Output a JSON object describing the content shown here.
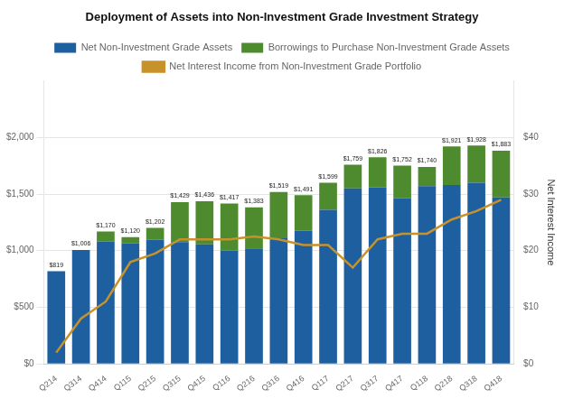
{
  "chart_data": {
    "type": "bar",
    "title": "Deployment of Assets into Non-Investment Grade Investment Strategy",
    "categories": [
      "Q214",
      "Q314",
      "Q414",
      "Q115",
      "Q215",
      "Q315",
      "Q415",
      "Q116",
      "Q216",
      "Q316",
      "Q416",
      "Q117",
      "Q217",
      "Q317",
      "Q417",
      "Q118",
      "Q218",
      "Q318",
      "Q418"
    ],
    "series": [
      {
        "name": "Net Non-Investment Grade Assets",
        "color": "#1E5F9F",
        "values": [
          819,
          1006,
          1080,
          1065,
          1095,
          1075,
          1055,
          1000,
          1020,
          1110,
          1175,
          1360,
          1550,
          1560,
          1465,
          1570,
          1580,
          1600,
          1470
        ]
      },
      {
        "name": "Borrowings to Purchase Non-Investment Grade Assets",
        "color": "#4E8A2E",
        "values": [
          0,
          0,
          90,
          55,
          107,
          354,
          381,
          417,
          363,
          409,
          316,
          239,
          209,
          266,
          287,
          170,
          341,
          328,
          413
        ]
      },
      {
        "name": "Net Interest Income from Non-Investment Grade Portfolio",
        "type": "line",
        "color": "#C8922A",
        "axis": "y2",
        "values": [
          2,
          8,
          11,
          18,
          19.5,
          22,
          22,
          22,
          22.5,
          22,
          21,
          21,
          17,
          22,
          23,
          23,
          25.5,
          27,
          29
        ]
      }
    ],
    "stacked": true,
    "totals": [
      819,
      1006,
      1170,
      1120,
      1202,
      1429,
      1436,
      1417,
      1383,
      1519,
      1491,
      1599,
      1759,
      1826,
      1752,
      1740,
      1921,
      1928,
      1883
    ],
    "total_labels": [
      "$819",
      "$1,006",
      "$1,170",
      "$1,120",
      "$1,202",
      "$1,429",
      "$1,436",
      "$1,417",
      "$1,383",
      "$1,519",
      "$1,491",
      "$1,599",
      "$1,759",
      "$1,826",
      "$1,752",
      "$1,740",
      "$1,921",
      "$1,928",
      "$1,883"
    ],
    "ylim": [
      0,
      2500
    ],
    "yticks": [
      {
        "value": 0,
        "label": "$0"
      },
      {
        "value": 500,
        "label": "$500"
      },
      {
        "value": 1000,
        "label": "$1,000"
      },
      {
        "value": 1500,
        "label": "$1,500"
      },
      {
        "value": 2000,
        "label": "$2,000"
      }
    ],
    "y2lim": [
      0,
      50
    ],
    "y2ticks": [
      {
        "value": 0,
        "label": "$0"
      },
      {
        "value": 10,
        "label": "$10"
      },
      {
        "value": 20,
        "label": "$20"
      },
      {
        "value": 30,
        "label": "$30"
      },
      {
        "value": 40,
        "label": "$40"
      }
    ],
    "y2label": "Net Interest Income",
    "grid": true,
    "legend": "top"
  }
}
